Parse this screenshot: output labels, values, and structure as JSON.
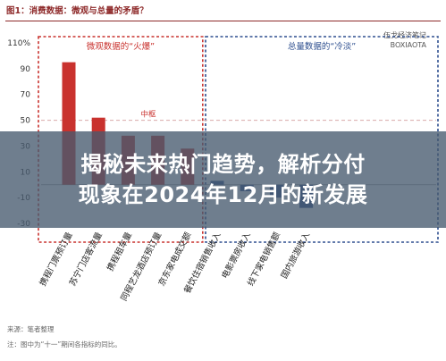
{
  "figure_title": "图1：消费数据：微观与总量的矛盾？",
  "watermark": {
    "line1": "伍戈经济笔记",
    "line2": "BOXIAOTA"
  },
  "headline": {
    "line1": "揭秘未来热门趋势，解析分付",
    "line2": "现象在2024年12月的新发展"
  },
  "footer": {
    "source": "来源：笔者整理",
    "note": "注：图中为“十一”期间各指标的同比。"
  },
  "chart_data": {
    "type": "bar",
    "y_unit": "%",
    "ylim": [
      -30,
      110
    ],
    "yticks": [
      -30,
      -10,
      10,
      30,
      50,
      70,
      90,
      110
    ],
    "ytick_labels": [
      "-30",
      "-10",
      "10",
      "30",
      "50",
      "70",
      "90",
      "110"
    ],
    "reference_line": {
      "label": "中枢",
      "value": 50
    },
    "groups": [
      {
        "label": "微观数据的“火爆”",
        "color": "#c9322e"
      },
      {
        "label": "总量数据的“冷淡”",
        "color": "#2e4f8f"
      }
    ],
    "categories": [
      "携程门票预订量",
      "苏宁门店客流量",
      "携程租车量",
      "同程艺龙酒店预订量",
      "京东家电成交额",
      "餐饮住宿销售收入",
      "电影票房收入",
      "线下家电销售额",
      "国内旅游收入"
    ],
    "values": [
      95,
      52,
      38,
      38,
      28,
      3,
      -5,
      -10,
      -18
    ],
    "group_index": [
      0,
      0,
      0,
      0,
      0,
      1,
      1,
      1,
      1
    ]
  }
}
